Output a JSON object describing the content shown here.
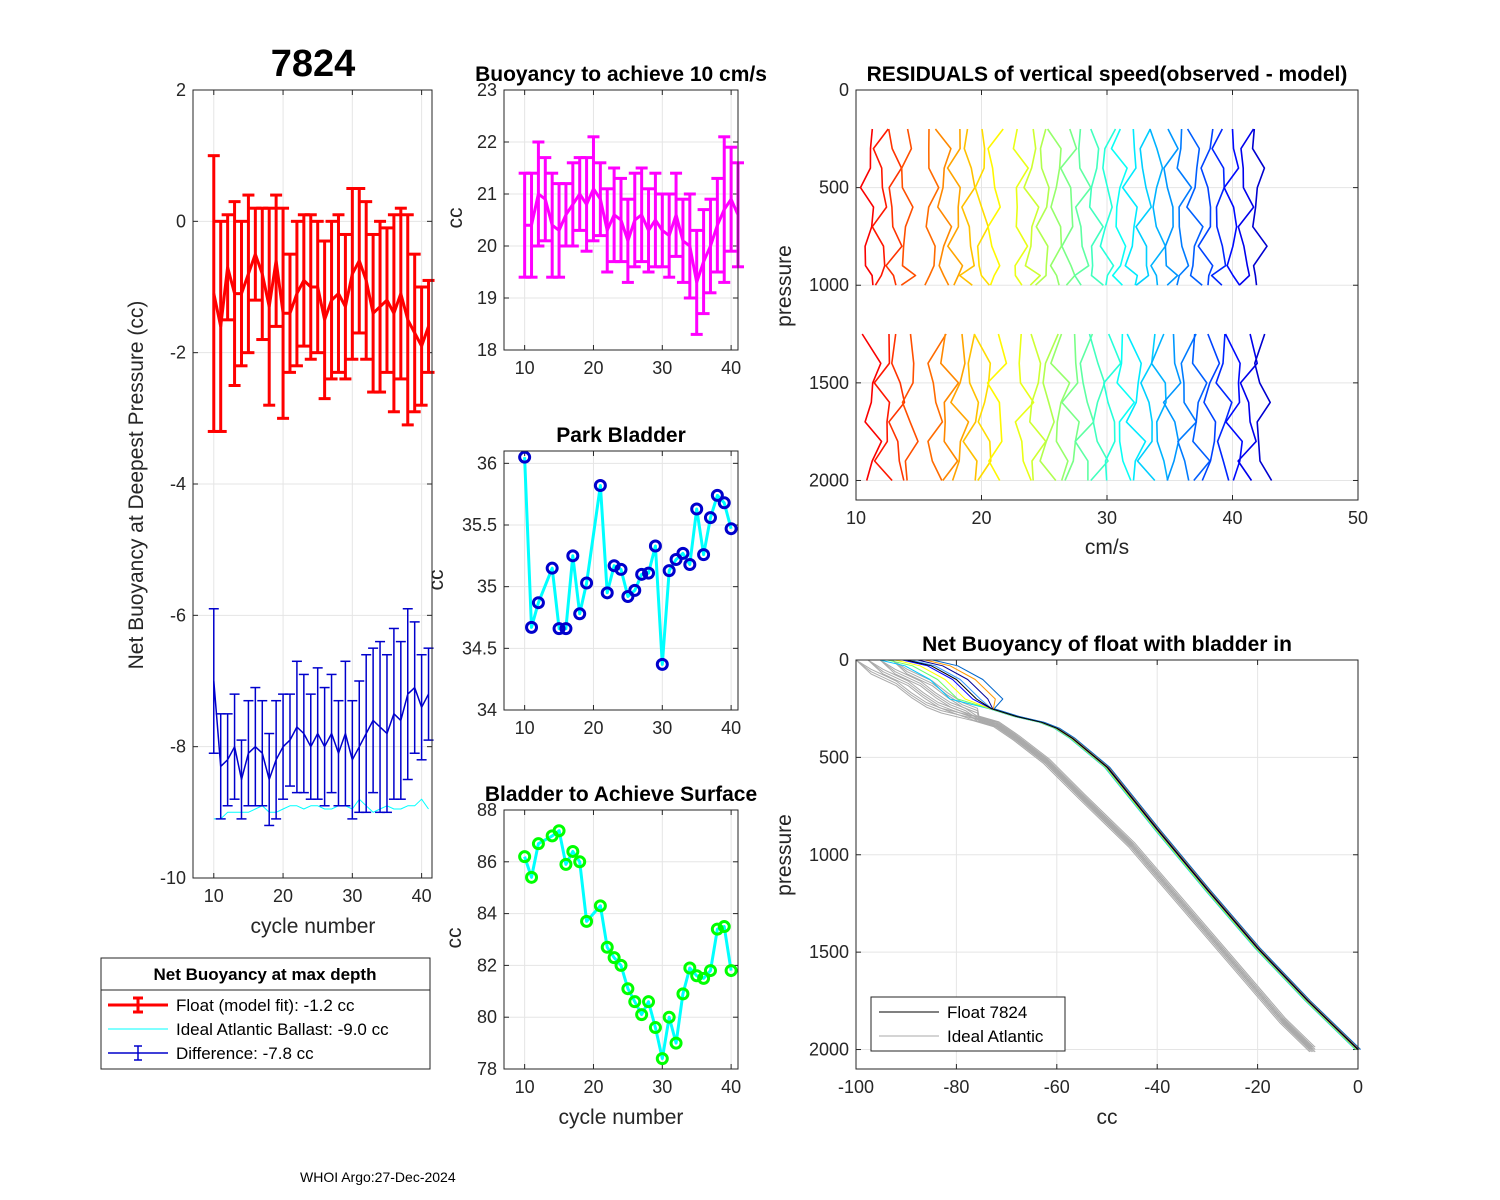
{
  "figure": {
    "float_id": "7824",
    "footer": "WHOI Argo:27-Dec-2024"
  },
  "legend_main": {
    "title": "Net Buoyancy at max depth",
    "items": [
      {
        "label": "Float (model fit):  -1.2 cc",
        "color": "#ff0000"
      },
      {
        "label": "Ideal Atlantic Ballast:  -9.0 cc",
        "color": "#00ffff"
      },
      {
        "label": "Difference:  -7.8 cc",
        "color": "#0000cc"
      }
    ]
  },
  "legend_profile": {
    "items": [
      {
        "label": "Float 7824",
        "color": "#000000"
      },
      {
        "label": "Ideal Atlantic",
        "color": "#aaaaaa"
      }
    ]
  },
  "chart_data": [
    {
      "id": "net_buoyancy",
      "type": "line",
      "title": "7824",
      "xlabel": "cycle number",
      "ylabel": "Net Buoyancy at Deepest Pressure (cc)",
      "xlim": [
        7,
        41.5
      ],
      "ylim": [
        -10,
        2
      ],
      "xticks": [
        10,
        20,
        30,
        40
      ],
      "yticks": [
        2,
        0,
        -2,
        -4,
        -6,
        -8,
        -10
      ],
      "x": [
        10,
        11,
        12,
        13,
        14,
        15,
        16,
        17,
        18,
        19,
        20,
        21,
        22,
        23,
        24,
        25,
        26,
        27,
        28,
        29,
        30,
        31,
        32,
        33,
        34,
        35,
        36,
        37,
        38,
        39,
        40,
        41
      ],
      "series": [
        {
          "name": "Float (model fit)",
          "color": "#ff0000",
          "values": [
            -1.1,
            -1.6,
            -0.7,
            -1.1,
            -1.1,
            -0.8,
            -0.5,
            -0.8,
            -1.3,
            -0.6,
            -1.4,
            -1.4,
            -1.1,
            -0.9,
            -1.0,
            -1.0,
            -1.5,
            -1.2,
            -1.1,
            -1.3,
            -0.8,
            -0.6,
            -0.9,
            -1.4,
            -1.3,
            -1.2,
            -1.4,
            -1.1,
            -1.5,
            -1.7,
            -1.9,
            -1.6
          ],
          "errors": [
            2.1,
            1.6,
            0.8,
            1.4,
            1.1,
            1.2,
            0.7,
            1.0,
            1.5,
            1.0,
            1.6,
            0.9,
            1.1,
            1.0,
            1.1,
            1.0,
            1.2,
            1.2,
            1.2,
            1.1,
            1.3,
            1.1,
            1.2,
            1.2,
            1.3,
            1.1,
            1.5,
            1.3,
            1.6,
            1.2,
            0.9,
            0.7
          ]
        },
        {
          "name": "Ideal Atlantic Ballast",
          "color": "#00ffff",
          "values": [
            -9.1,
            -9.1,
            -9.0,
            -9.0,
            -9.0,
            -9.0,
            -8.95,
            -8.9,
            -9.0,
            -9.0,
            -8.95,
            -8.9,
            -8.9,
            -8.95,
            -8.9,
            -8.9,
            -8.95,
            -8.95,
            -8.9,
            -8.9,
            -8.95,
            -8.8,
            -8.9,
            -9.0,
            -8.95,
            -8.9,
            -8.95,
            -8.95,
            -8.9,
            -8.9,
            -8.8,
            -8.95
          ]
        },
        {
          "name": "Difference",
          "color": "#0000cc",
          "values": [
            -7.0,
            -8.3,
            -8.2,
            -8.0,
            -8.5,
            -8.1,
            -8.0,
            -8.1,
            -8.5,
            -8.2,
            -8.0,
            -7.9,
            -7.7,
            -7.8,
            -8.0,
            -7.8,
            -8.0,
            -7.8,
            -8.1,
            -7.8,
            -8.2,
            -8.0,
            -7.8,
            -7.6,
            -7.7,
            -7.8,
            -7.5,
            -7.6,
            -7.2,
            -7.1,
            -7.4,
            -7.2
          ],
          "errors": [
            1.1,
            0.8,
            0.7,
            0.8,
            0.6,
            0.8,
            0.9,
            0.8,
            0.7,
            0.9,
            0.8,
            0.7,
            1.0,
            0.9,
            0.8,
            1.0,
            0.9,
            0.9,
            0.8,
            1.1,
            0.9,
            1.0,
            1.2,
            1.1,
            1.3,
            1.2,
            1.3,
            1.2,
            1.3,
            1.0,
            0.8,
            0.7
          ]
        }
      ]
    },
    {
      "id": "buoyancy_10cms",
      "type": "line",
      "title": "Buoyancy to achieve 10 cm/s",
      "xlabel": "",
      "ylabel": "cc",
      "xlim": [
        7,
        41
      ],
      "ylim": [
        18,
        23
      ],
      "xticks": [
        10,
        20,
        30,
        40
      ],
      "yticks": [
        23,
        22,
        21,
        20,
        19,
        18
      ],
      "x": [
        10,
        11,
        12,
        13,
        14,
        15,
        16,
        17,
        18,
        19,
        20,
        21,
        22,
        23,
        24,
        25,
        26,
        27,
        28,
        29,
        30,
        31,
        32,
        33,
        34,
        35,
        36,
        37,
        38,
        39,
        40,
        41
      ],
      "series": [
        {
          "name": "buoyancy",
          "color": "#ff00ff",
          "values": [
            20.4,
            20.4,
            21.0,
            20.9,
            20.4,
            20.3,
            20.6,
            20.8,
            21.0,
            20.8,
            21.1,
            20.9,
            20.3,
            20.6,
            20.5,
            20.1,
            20.5,
            20.6,
            20.3,
            20.5,
            20.3,
            20.2,
            20.6,
            20.1,
            20.0,
            19.3,
            19.7,
            20.0,
            20.4,
            20.7,
            20.9,
            20.6
          ],
          "errors": [
            1.0,
            1.0,
            1.0,
            0.8,
            1.0,
            0.9,
            0.6,
            0.8,
            0.7,
            0.9,
            1.0,
            0.7,
            0.8,
            0.9,
            0.8,
            0.8,
            0.9,
            0.9,
            0.8,
            0.9,
            0.7,
            0.8,
            0.8,
            0.8,
            1.0,
            1.0,
            1.0,
            0.9,
            0.9,
            1.4,
            1.0,
            1.0
          ]
        }
      ]
    },
    {
      "id": "park_bladder",
      "type": "line",
      "title": "Park Bladder",
      "xlabel": "",
      "ylabel": "cc",
      "xlim": [
        7,
        41
      ],
      "ylim": [
        34,
        36.1
      ],
      "xticks": [
        10,
        20,
        30,
        40
      ],
      "yticks": [
        36,
        35.5,
        35,
        34.5,
        34
      ],
      "x": [
        10,
        11,
        12,
        14,
        15,
        16,
        17,
        18,
        19,
        21,
        22,
        23,
        24,
        25,
        26,
        27,
        28,
        29,
        30,
        31,
        32,
        33,
        34,
        35,
        36,
        37,
        38,
        39,
        40
      ],
      "series": [
        {
          "name": "park",
          "color": "#00ffff",
          "marker_color": "#0000cc",
          "values": [
            36.05,
            34.67,
            34.87,
            35.15,
            34.66,
            34.66,
            35.25,
            34.78,
            35.03,
            35.82,
            34.95,
            35.17,
            35.14,
            34.92,
            34.97,
            35.1,
            35.11,
            35.33,
            34.37,
            35.13,
            35.22,
            35.27,
            35.18,
            35.63,
            35.26,
            35.56,
            35.74,
            35.68,
            35.47
          ]
        }
      ]
    },
    {
      "id": "bladder_surface",
      "type": "line",
      "title": "Bladder to Achieve Surface",
      "xlabel": "cycle number",
      "ylabel": "cc",
      "xlim": [
        7,
        41
      ],
      "ylim": [
        78,
        88
      ],
      "xticks": [
        10,
        20,
        30,
        40
      ],
      "yticks": [
        88,
        86,
        84,
        82,
        80,
        78
      ],
      "x": [
        10,
        11,
        12,
        14,
        15,
        16,
        17,
        18,
        19,
        21,
        22,
        23,
        24,
        25,
        26,
        27,
        28,
        29,
        30,
        31,
        32,
        33,
        34,
        35,
        36,
        37,
        38,
        39,
        40
      ],
      "series": [
        {
          "name": "surface",
          "color": "#00ffff",
          "marker_color": "#00ff00",
          "values": [
            86.2,
            85.4,
            86.7,
            87.0,
            87.2,
            85.9,
            86.4,
            86.0,
            83.7,
            84.3,
            82.7,
            82.3,
            82.0,
            81.1,
            80.6,
            80.1,
            80.6,
            79.6,
            78.4,
            80.0,
            79.0,
            80.9,
            81.9,
            81.6,
            81.5,
            81.8,
            83.4,
            83.5,
            81.8
          ]
        }
      ]
    },
    {
      "id": "residuals",
      "type": "line",
      "title": "RESIDUALS of vertical speed(observed - model)",
      "xlabel": "cm/s",
      "ylabel": "pressure",
      "xlim": [
        10,
        50
      ],
      "ylim": [
        2100,
        0
      ],
      "xticks": [
        10,
        20,
        30,
        40,
        50
      ],
      "yticks": [
        0,
        500,
        1000,
        1500,
        2000
      ],
      "upper_pressures": [
        200,
        300,
        400,
        500,
        600,
        700,
        800,
        900,
        950,
        1000
      ],
      "lower_pressures": [
        1250,
        1400,
        1500,
        1600,
        1700,
        1800,
        1900,
        2000
      ],
      "profile_offsets": [
        11,
        12,
        13,
        14,
        16,
        17,
        18,
        19,
        20,
        21,
        23,
        24,
        25,
        26,
        27,
        28,
        29,
        30,
        31,
        32,
        33,
        34,
        35,
        36,
        37,
        38,
        39,
        40,
        41,
        42
      ],
      "colormap": "jet"
    },
    {
      "id": "net_buoyancy_profile",
      "type": "line",
      "title": "Net Buoyancy of float with bladder in",
      "xlabel": "cc",
      "ylabel": "pressure",
      "xlim": [
        -100,
        0
      ],
      "ylim": [
        2100,
        0
      ],
      "xticks": [
        -100,
        -80,
        -60,
        -40,
        -20,
        0
      ],
      "yticks": [
        0,
        500,
        1000,
        1500,
        2000
      ],
      "series": [
        {
          "name": "Float 7824",
          "color": "#000000",
          "x": [
            -90,
            -85,
            -80,
            -76,
            -73,
            -68,
            -63,
            -60,
            -57,
            -50,
            -40,
            -30,
            -20,
            -10,
            0
          ],
          "y": [
            0,
            30,
            100,
            200,
            250,
            290,
            320,
            350,
            400,
            550,
            870,
            1180,
            1480,
            1750,
            2000
          ]
        },
        {
          "name": "Ideal Atlantic",
          "color": "#aaaaaa",
          "x": [
            -96,
            -93,
            -88,
            -85,
            -82,
            -79,
            -76,
            -72,
            -68,
            -62,
            -55,
            -45,
            -35,
            -25,
            -15,
            -9
          ],
          "y": [
            0,
            60,
            120,
            180,
            230,
            260,
            300,
            330,
            400,
            520,
            700,
            950,
            1250,
            1550,
            1850,
            2000
          ]
        }
      ]
    }
  ]
}
